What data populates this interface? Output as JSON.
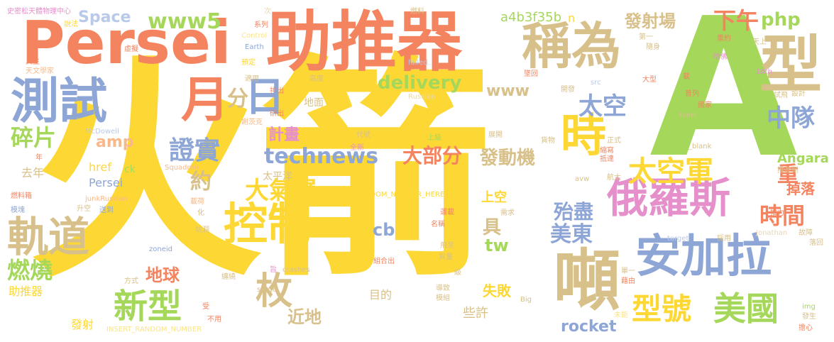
{
  "palette": {
    "yellow": "#FDD835",
    "orange": "#F4845F",
    "green": "#A5D85A",
    "tan": "#D8C08A",
    "blue": "#8EA6D6",
    "pink": "#E58FCB",
    "light_orange": "#F8B98A",
    "light_green": "#C8E39A",
    "light_yellow": "#FBE48A",
    "light_blue": "#B9C9EA",
    "light_pink": "#F1BCE0",
    "light_tan": "#E8D7B2"
  },
  "words": [
    {
      "text": "火箭"
    },
    {
      "text": "A"
    },
    {
      "text": "Persei"
    },
    {
      "text": "助推器"
    },
    {
      "text": "稱為"
    },
    {
      "text": "型"
    },
    {
      "text": "測試"
    },
    {
      "text": "月"
    },
    {
      "text": "日"
    },
    {
      "text": "分"
    },
    {
      "text": "時"
    },
    {
      "text": "下午"
    },
    {
      "text": "php"
    },
    {
      "text": "發射場"
    },
    {
      "text": "www5"
    },
    {
      "text": "a4b3f35b"
    },
    {
      "text": "n"
    },
    {
      "text": "Space"
    },
    {
      "text": "俄羅斯"
    },
    {
      "text": "安加拉"
    },
    {
      "text": "噸"
    },
    {
      "text": "控制"
    },
    {
      "text": "軌道"
    },
    {
      "text": "新型"
    },
    {
      "text": "枚"
    },
    {
      "text": "型號"
    },
    {
      "text": "美國"
    },
    {
      "text": "太空軍"
    },
    {
      "text": "太空"
    },
    {
      "text": "中隊"
    },
    {
      "text": "證實"
    },
    {
      "text": "technews"
    },
    {
      "text": "大氣層"
    },
    {
      "text": "發動機"
    },
    {
      "text": "大部分"
    },
    {
      "text": "碎片"
    },
    {
      "text": "燃燒"
    },
    {
      "text": "約"
    },
    {
      "text": "計畫"
    },
    {
      "text": "delivery"
    },
    {
      "text": "www"
    },
    {
      "text": "amp"
    },
    {
      "text": "rocket"
    },
    {
      "text": "美東"
    },
    {
      "text": "時間"
    },
    {
      "text": "殆盡"
    },
    {
      "text": "重"
    },
    {
      "text": "地球"
    },
    {
      "text": "cb"
    },
    {
      "text": "tw"
    },
    {
      "text": "近地"
    },
    {
      "text": "失敗"
    },
    {
      "text": "Angara"
    },
    {
      "text": "掉落"
    },
    {
      "text": "具"
    },
    {
      "text": "上空"
    },
    {
      "text": "目的"
    },
    {
      "text": "些許"
    },
    {
      "text": "href"
    },
    {
      "text": "ck"
    },
    {
      "text": "Persei"
    },
    {
      "text": "去年"
    },
    {
      "text": "太平洋"
    },
    {
      "text": "助推器"
    },
    {
      "text": "發射"
    },
    {
      "text": "INSERT_RANDOM_NUMBER_HERE"
    },
    {
      "text": "INSERT_RANDOM_NUMBER"
    },
    {
      "text": "史密松天體物理中心"
    },
    {
      "text": "說法"
    },
    {
      "text": "次"
    },
    {
      "text": "系列"
    },
    {
      "text": "燃料"
    },
    {
      "text": "重約"
    },
    {
      "text": "天上"
    },
    {
      "text": "具主"
    },
    {
      "text": "虛擬"
    },
    {
      "text": "天文學家"
    },
    {
      "text": "Control"
    },
    {
      "text": "Earth"
    },
    {
      "text": "預定"
    },
    {
      "text": "failed"
    },
    {
      "text": "哈佛"
    },
    {
      "text": "18th"
    },
    {
      "text": "適用"
    },
    {
      "text": "高度"
    },
    {
      "text": "排出"
    },
    {
      "text": "地面"
    },
    {
      "text": "研出"
    },
    {
      "text": "謝茨克"
    },
    {
      "text": "src"
    },
    {
      "text": "開發"
    },
    {
      "text": "普列"
    },
    {
      "text": "國家"
    },
    {
      "text": "試飛"
    },
    {
      "text": "設計"
    },
    {
      "text": "Russian"
    },
    {
      "text": "McDowell"
    },
    {
      "text": "代號"
    },
    {
      "text": "全新"
    },
    {
      "text": "上級"
    },
    {
      "text": "展開"
    },
    {
      "text": "貨物"
    },
    {
      "text": "正式"
    },
    {
      "text": "縮寫"
    },
    {
      "text": "抵達"
    },
    {
      "text": "_blank"
    },
    {
      "text": "hunk"
    },
    {
      "text": "推進劑"
    },
    {
      "text": "Squadron"
    },
    {
      "text": "avw"
    },
    {
      "text": "航太"
    },
    {
      "text": "燃料箱"
    },
    {
      "text": "junkRussian"
    },
    {
      "text": "模塊"
    },
    {
      "text": "送到"
    },
    {
      "text": "升空"
    },
    {
      "text": "載荷"
    },
    {
      "text": "運載"
    },
    {
      "text": "需求"
    },
    {
      "text": "推力"
    },
    {
      "text": "target"
    },
    {
      "text": "採用"
    },
    {
      "text": "Jonathan"
    },
    {
      "text": "故障"
    },
    {
      "text": "落回"
    },
    {
      "text": "坑洞"
    },
    {
      "text": "名稱"
    },
    {
      "text": "zoneid"
    },
    {
      "text": "飛至"
    },
    {
      "text": "質量"
    },
    {
      "text": "組合出"
    },
    {
      "text": "crashes"
    },
    {
      "text": "旨"
    },
    {
      "text": "stage"
    },
    {
      "text": "單一"
    },
    {
      "text": "藉由"
    },
    {
      "text": "級"
    },
    {
      "text": "導致"
    },
    {
      "text": "模組"
    },
    {
      "text": "Big"
    },
    {
      "text": "img"
    },
    {
      "text": "發生"
    },
    {
      "text": "未能"
    },
    {
      "text": "擔心"
    },
    {
      "text": "方式"
    },
    {
      "text": "纏繞"
    },
    {
      "text": "受"
    },
    {
      "text": "不用"
    },
    {
      "text": "年"
    },
    {
      "text": "化"
    },
    {
      "text": "第一"
    },
    {
      "text": "隨身"
    },
    {
      "text": "大型"
    },
    {
      "text": "載"
    },
    {
      "text": "墜回"
    }
  ]
}
